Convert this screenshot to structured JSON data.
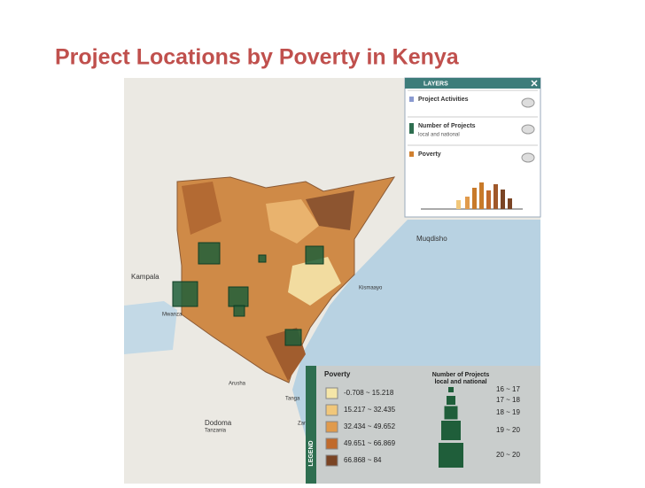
{
  "title": "Project Locations by Poverty in Kenya",
  "places": [
    "Kampala",
    "Muqdisho",
    "Mwanza",
    "Arusha",
    "Dodoma",
    "Tanzania",
    "Tanga",
    "Kismaayo",
    "Zanzibar City"
  ],
  "layers": {
    "header": "LAYERS",
    "items": [
      {
        "name": "Project Activities"
      },
      {
        "name": "Number of Projects",
        "sub": "local and national"
      },
      {
        "name": "Poverty"
      }
    ]
  },
  "legend": {
    "tab": "LEGEND",
    "poverty": {
      "title": "Poverty",
      "classes": [
        "-0.708 ~ 15.218",
        "15.217 ~ 32.435",
        "32.434 ~ 49.652",
        "49.651 ~ 66.869",
        "66.868 ~ 84"
      ]
    },
    "projects": {
      "title": "Number of Projects",
      "sub": "local and national",
      "classes": [
        "16 ~ 17",
        "17 ~ 18",
        "18 ~ 19",
        "19 ~ 20",
        "20 ~ 20"
      ]
    }
  }
}
